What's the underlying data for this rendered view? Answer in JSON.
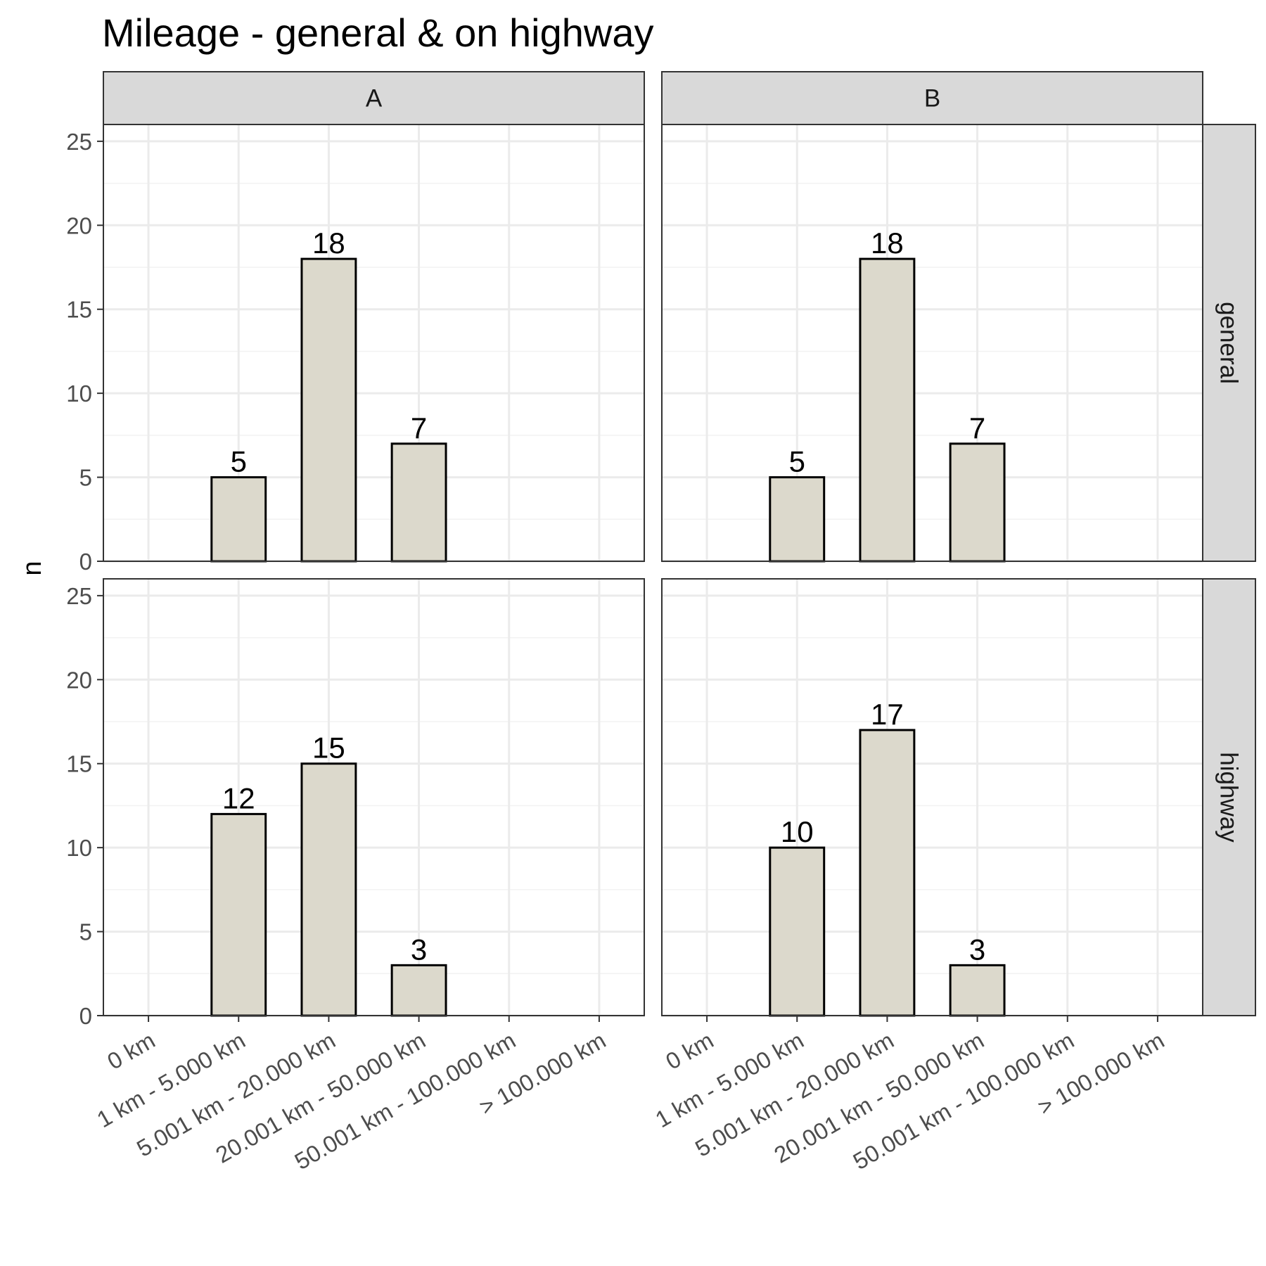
{
  "chart_data": {
    "type": "bar",
    "title": "Mileage - general & on highway",
    "xlabel": "",
    "ylabel": "n",
    "ylim": [
      0,
      26
    ],
    "yticks": [
      0,
      5,
      10,
      15,
      20,
      25
    ],
    "grid": true,
    "categories": [
      "0 km",
      "1 km - 5.000 km",
      "5.001 km - 20.000 km",
      "20.001 km - 50.000 km",
      "50.001 km - 100.000 km",
      "> 100.000 km"
    ],
    "facet_columns": [
      "A",
      "B"
    ],
    "facet_rows": [
      "general",
      "highway"
    ],
    "bar_fill": "#dcd9cc",
    "bar_stroke": "#000000",
    "strip_fill": "#d9d9d9",
    "panels": [
      {
        "column": "A",
        "row": "general",
        "values": [
          null,
          5,
          18,
          7,
          null,
          null
        ]
      },
      {
        "column": "B",
        "row": "general",
        "values": [
          null,
          5,
          18,
          7,
          null,
          null
        ]
      },
      {
        "column": "A",
        "row": "highway",
        "values": [
          null,
          12,
          15,
          3,
          null,
          null
        ]
      },
      {
        "column": "B",
        "row": "highway",
        "values": [
          null,
          10,
          17,
          3,
          null,
          null
        ]
      }
    ]
  }
}
